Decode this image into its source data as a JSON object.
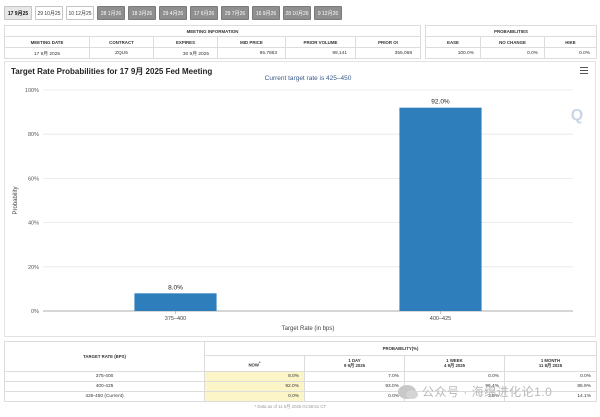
{
  "tabs": [
    {
      "label": "17 9月25",
      "style": "active"
    },
    {
      "label": "29 10月25",
      "style": "light"
    },
    {
      "label": "10 12月25",
      "style": "light"
    },
    {
      "label": "28 1月26",
      "style": "dark"
    },
    {
      "label": "18 3月26",
      "style": "dark"
    },
    {
      "label": "29 4月26",
      "style": "dark"
    },
    {
      "label": "17 6月26",
      "style": "dark"
    },
    {
      "label": "29 7月26",
      "style": "dark"
    },
    {
      "label": "16 9月26",
      "style": "dark"
    },
    {
      "label": "28 10月26",
      "style": "dark"
    },
    {
      "label": "9 12月26",
      "style": "dark"
    }
  ],
  "meeting_info": {
    "header": "MEETING INFORMATION",
    "columns": [
      "MEETING DATE",
      "CONTRACT",
      "EXPIRES",
      "MID PRICE",
      "PRIOR VOLUME",
      "PRIOR OI"
    ],
    "row": [
      "17 9月 2025",
      "ZQU5",
      "30 9月 2025",
      "95.7863",
      "99,141",
      "355,068"
    ]
  },
  "probabilities": {
    "header": "PROBABILITIES",
    "columns": [
      "EASE",
      "NO CHANGE",
      "HIKE"
    ],
    "row": [
      "100.0%",
      "0.0%",
      "0.0%"
    ]
  },
  "chart": {
    "title": "Target Rate Probabilities for 17 9月 2025 Fed Meeting",
    "watermark_letter": "Q"
  },
  "chart_data": {
    "type": "bar",
    "title": "Target Rate Probabilities for 17 9月 2025 Fed Meeting",
    "subtitle": "Current target rate is 425–450",
    "categories": [
      "375–400",
      "400–425"
    ],
    "values": [
      8.0,
      92.0
    ],
    "data_labels": [
      "8.0%",
      "92.0%"
    ],
    "xlabel": "Target Rate (in bps)",
    "ylabel": "Probability",
    "ylim": [
      0,
      100
    ],
    "yticks": [
      "0%",
      "20%",
      "40%",
      "60%",
      "80%",
      "100%"
    ],
    "grid": true,
    "bar_color": "#2e7ebc",
    "legend": "none"
  },
  "bottom_table": {
    "col_rate": "TARGET RATE (BPS)",
    "group_header": "PROBABILITY(%)",
    "col_now": "NOW",
    "col_now_mark": "*",
    "sub_columns": [
      {
        "title": "1 DAY",
        "date": "9 9月 2025"
      },
      {
        "title": "1 WEEK",
        "date": "4 9月 2025"
      },
      {
        "title": "1 MONTH",
        "date": "11 8月 2025"
      }
    ],
    "rows": [
      {
        "rate": "375-400",
        "now": "8.0%",
        "day": "7.0%",
        "week": "0.0%",
        "month": "0.0%"
      },
      {
        "rate": "400-425",
        "now": "92.0%",
        "day": "93.0%",
        "week": "96.4%",
        "month": "85.9%"
      },
      {
        "rate": "425-450 (Current)",
        "now": "0.0%",
        "day": "0.0%",
        "week": "3.6%",
        "month": "14.1%"
      }
    ],
    "note": "* Data as of 11 9月 2025 01:58:51 CT"
  },
  "watermark": {
    "text": "公众号 · 海绵进化论1.0",
    "icon": "wechat-icon"
  }
}
